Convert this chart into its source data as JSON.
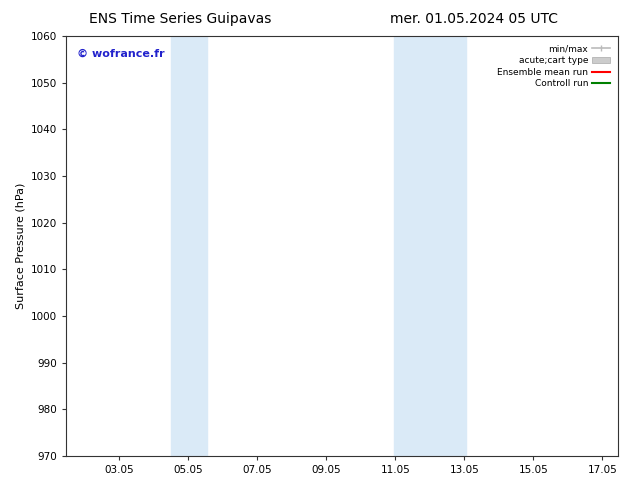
{
  "title_left": "ENS Time Series Guipavas",
  "title_right": "mer. 01.05.2024 05 UTC",
  "ylabel": "Surface Pressure (hPa)",
  "ylim": [
    970,
    1060
  ],
  "yticks": [
    970,
    980,
    990,
    1000,
    1010,
    1020,
    1030,
    1040,
    1050,
    1060
  ],
  "xlim_start": 1.5,
  "xlim_end": 17.5,
  "xticks": [
    3.05,
    5.05,
    7.05,
    9.05,
    11.05,
    13.05,
    15.05,
    17.05
  ],
  "xticklabels": [
    "03.05",
    "05.05",
    "07.05",
    "09.05",
    "11.05",
    "13.05",
    "15.05",
    "17.05"
  ],
  "shaded_regions": [
    {
      "xmin": 4.55,
      "xmax": 5.6,
      "color": "#daeaf7"
    },
    {
      "xmin": 11.0,
      "xmax": 13.1,
      "color": "#daeaf7"
    }
  ],
  "watermark_text": "© wofrance.fr",
  "watermark_color": "#2222cc",
  "bg_color": "#ffffff",
  "plot_bg_color": "#ffffff",
  "legend_entries": [
    {
      "label": "min/max",
      "color": "#bbbbbb",
      "lw": 1.2
    },
    {
      "label": "acute;cart type",
      "color": "#cccccc",
      "lw": 6
    },
    {
      "label": "Ensemble mean run",
      "color": "#ff0000",
      "lw": 1.5
    },
    {
      "label": "Controll run",
      "color": "#008000",
      "lw": 1.5
    }
  ],
  "title_fontsize": 10,
  "tick_fontsize": 7.5,
  "ylabel_fontsize": 8,
  "watermark_fontsize": 8
}
